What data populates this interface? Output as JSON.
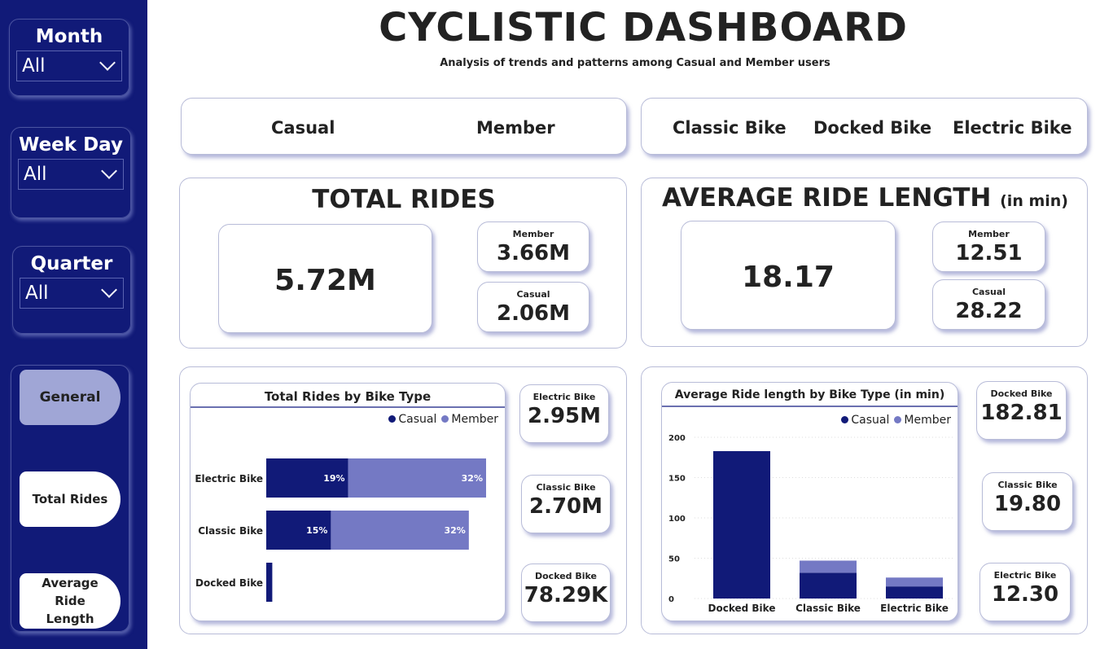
{
  "header": {
    "title": "CYCLISTIC DASHBOARD",
    "subtitle": "Analysis of trends and patterns among Casual and Member users"
  },
  "colors": {
    "sidebar": "#111a78",
    "casual": "#111a78",
    "member": "#7479c4",
    "nav_active": "#a0a6d6"
  },
  "filters": [
    {
      "label": "Month",
      "value": "All",
      "icon": "chevron-down-icon"
    },
    {
      "label": "Week Day",
      "value": "All",
      "icon": "chevron-down-icon"
    },
    {
      "label": "Quarter",
      "value": "All",
      "icon": "chevron-down-icon"
    }
  ],
  "nav": [
    {
      "label": "General",
      "active": true
    },
    {
      "label": "Total Rides",
      "active": false
    },
    {
      "label": "Average Ride Length",
      "active": false
    }
  ],
  "user_slicer": [
    "Casual",
    "Member"
  ],
  "bike_slicer": [
    "Classic Bike",
    "Docked Bike",
    "Electric Bike"
  ],
  "total_rides": {
    "title": "TOTAL RIDES",
    "value": "5.72M",
    "member_label": "Member",
    "member_value": "3.66M",
    "casual_label": "Casual",
    "casual_value": "2.06M"
  },
  "avg_ride": {
    "title": "AVERAGE RIDE LENGTH",
    "unit": "(in min)",
    "value": "18.17",
    "member_label": "Member",
    "member_value": "12.51",
    "casual_label": "Casual",
    "casual_value": "28.22"
  },
  "rides_by_type_cards": [
    {
      "label": "Electric Bike",
      "value": "2.95M"
    },
    {
      "label": "Classic Bike",
      "value": "2.70M"
    },
    {
      "label": "Docked Bike",
      "value": "78.29K"
    }
  ],
  "avg_by_type_cards": [
    {
      "label": "Docked Bike",
      "value": "182.81"
    },
    {
      "label": "Classic Bike",
      "value": "19.80"
    },
    {
      "label": "Electric Bike",
      "value": "12.30"
    }
  ],
  "chart_data": [
    {
      "type": "bar",
      "orientation": "horizontal-stacked",
      "title": "Total Rides by Bike Type",
      "categories": [
        "Electric Bike",
        "Classic Bike",
        "Docked Bike"
      ],
      "series": [
        {
          "name": "Casual",
          "values": [
            19,
            15,
            1.4
          ],
          "labels": [
            "19%",
            "15%",
            ""
          ]
        },
        {
          "name": "Member",
          "values": [
            32,
            32,
            0
          ],
          "labels": [
            "32%",
            "32%",
            ""
          ]
        }
      ],
      "unit": "percent of total rides",
      "legend": "top-right",
      "xmax": 51
    },
    {
      "type": "bar",
      "orientation": "vertical-stacked",
      "title": "Average Ride length by Bike Type (in min)",
      "categories": [
        "Docked Bike",
        "Classic Bike",
        "Electric Bike"
      ],
      "series": [
        {
          "name": "Casual",
          "values": [
            182.81,
            32,
            15
          ]
        },
        {
          "name": "Member",
          "values": [
            0,
            15,
            11
          ]
        }
      ],
      "ylim": [
        0,
        200
      ],
      "yticks": [
        "0",
        "50",
        "100",
        "150",
        "200"
      ],
      "grid": true,
      "legend": "top-right"
    }
  ]
}
